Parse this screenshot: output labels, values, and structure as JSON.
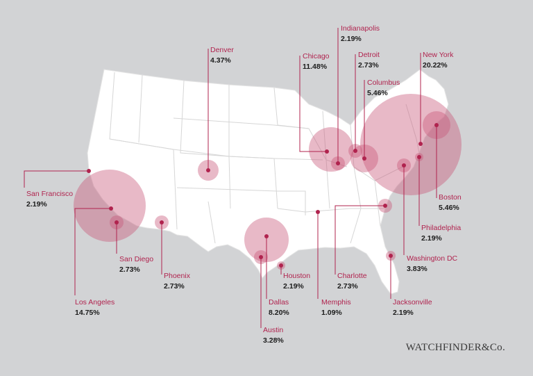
{
  "colors": {
    "background": "#d2d3d5",
    "land": "#ffffff",
    "state_borders": "#d8d8d8",
    "bubble": "#c9587a",
    "dot": "#b0234e",
    "leader": "#b0234e",
    "label": "#b0234e",
    "value": "#1b1b1b"
  },
  "brand": "WATCHFINDER&Co.",
  "cities": [
    {
      "name": "San Francisco",
      "value": "2.19%"
    },
    {
      "name": "Los Angeles",
      "value": "14.75%"
    },
    {
      "name": "San Diego",
      "value": "2.73%"
    },
    {
      "name": "Phoenix",
      "value": "2.73%"
    },
    {
      "name": "Denver",
      "value": "4.37%"
    },
    {
      "name": "Dallas",
      "value": "8.20%"
    },
    {
      "name": "Austin",
      "value": "3.28%"
    },
    {
      "name": "Houston",
      "value": "2.19%"
    },
    {
      "name": "Memphis",
      "value": "1.09%"
    },
    {
      "name": "Chicago",
      "value": "11.48%"
    },
    {
      "name": "Indianapolis",
      "value": "2.19%"
    },
    {
      "name": "Detroit",
      "value": "2.73%"
    },
    {
      "name": "Columbus",
      "value": "5.46%"
    },
    {
      "name": "New York",
      "value": "20.22%"
    },
    {
      "name": "Boston",
      "value": "5.46%"
    },
    {
      "name": "Philadelphia",
      "value": "2.19%"
    },
    {
      "name": "Washington DC",
      "value": "3.83%"
    },
    {
      "name": "Charlotte",
      "value": "2.73%"
    },
    {
      "name": "Jacksonville",
      "value": "2.19%"
    }
  ]
}
